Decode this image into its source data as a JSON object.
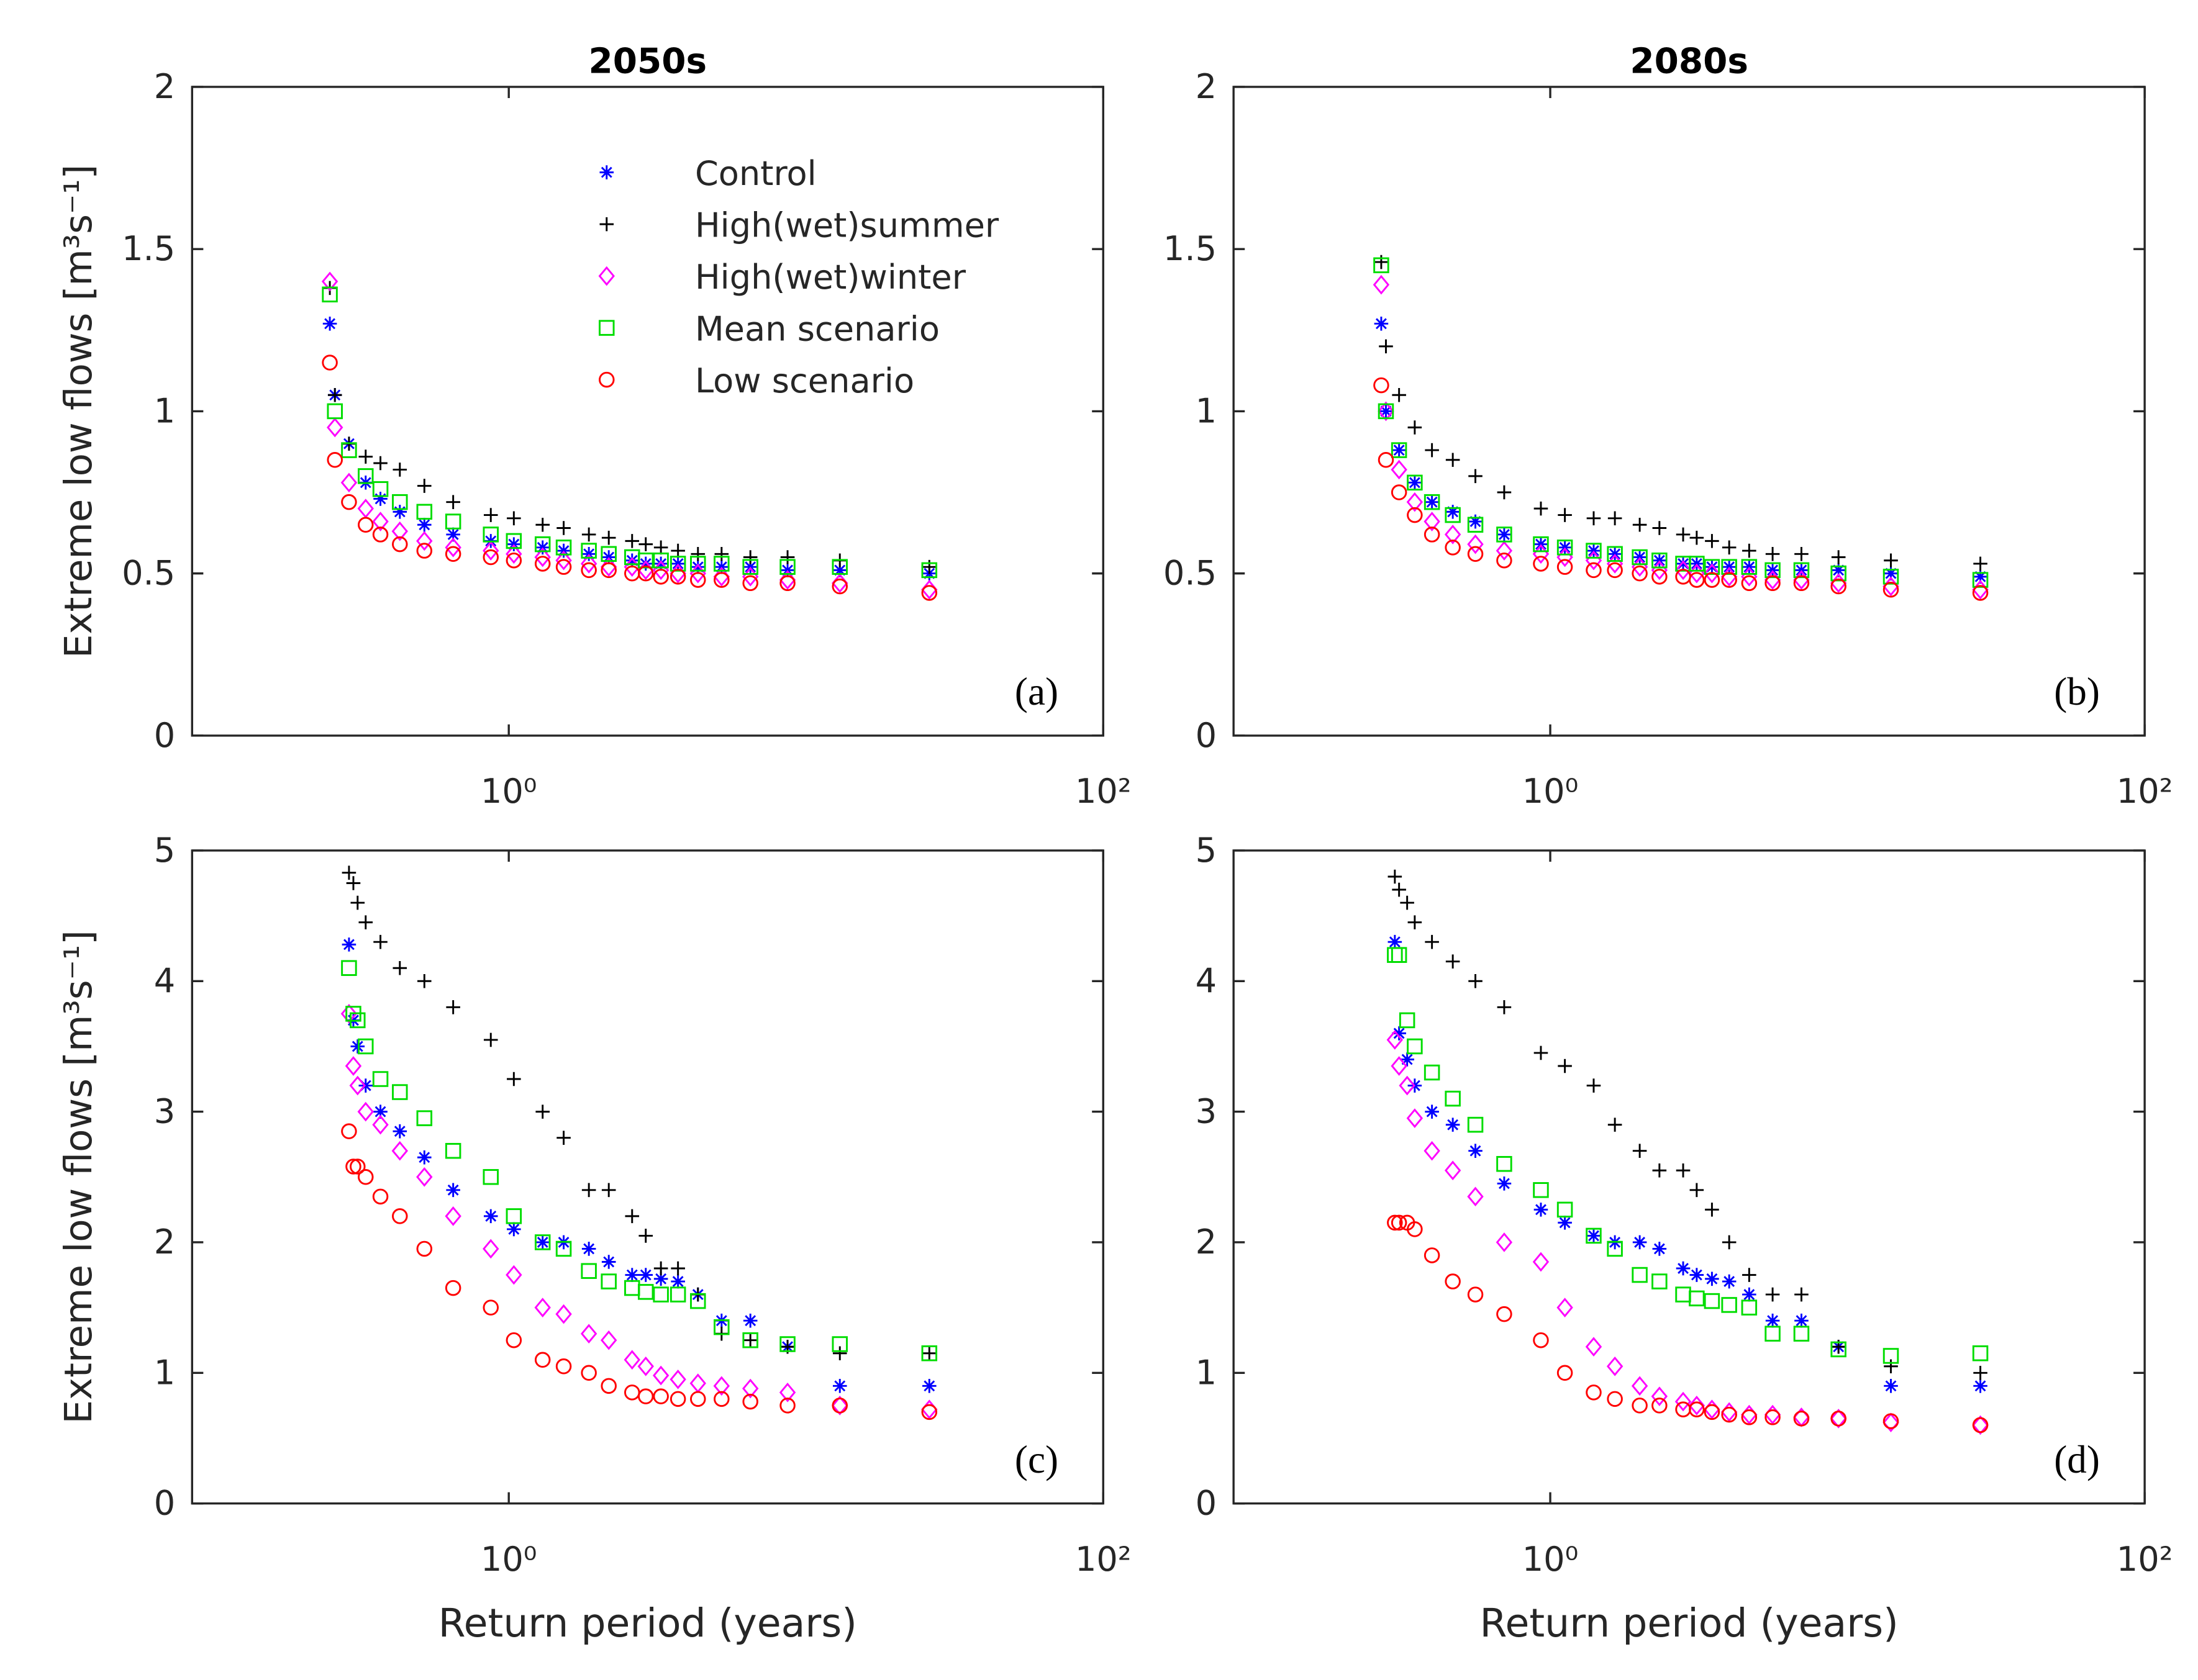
{
  "chart_data": [
    {
      "type": "scatter",
      "title": "2050s",
      "ylabel": "Extreme low flows [m³s⁻¹]",
      "annotation": "(a)",
      "legend": "upper center",
      "xscale": "log",
      "xlim": [
        0.086,
        100
      ],
      "xticks": [
        {
          "value": 1,
          "label": "10⁰"
        },
        {
          "value": 100,
          "label": "10²"
        }
      ],
      "ylim": [
        0,
        2
      ],
      "yticks": [
        0,
        0.5,
        1,
        1.5,
        2
      ],
      "x": [
        26,
        13,
        8.67,
        6.5,
        5.2,
        4.33,
        3.71,
        3.25,
        2.89,
        2.6,
        2.17,
        1.86,
        1.53,
        1.3,
        1.04,
        0.87,
        0.65,
        0.52,
        0.43,
        0.37,
        0.33,
        0.29,
        0.26,
        0.25
      ],
      "series": [
        {
          "name": "Control",
          "marker": "star",
          "color": "#0000ff",
          "values": [
            0.5,
            0.51,
            0.51,
            0.52,
            0.52,
            0.52,
            0.53,
            0.53,
            0.53,
            0.54,
            0.55,
            0.56,
            0.57,
            0.58,
            0.59,
            0.6,
            0.62,
            0.65,
            0.69,
            0.73,
            0.78,
            0.9,
            1.05,
            1.27
          ]
        },
        {
          "name": "High(wet)summer",
          "marker": "plus",
          "color": "#000000",
          "values": [
            0.52,
            0.54,
            0.55,
            0.55,
            0.56,
            0.56,
            0.57,
            0.58,
            0.59,
            0.6,
            0.61,
            0.62,
            0.64,
            0.65,
            0.67,
            0.68,
            0.72,
            0.77,
            0.82,
            0.84,
            0.86,
            0.9,
            1.05,
            1.38
          ]
        },
        {
          "name": "High(wet)winter",
          "marker": "diamond",
          "color": "#ff00ff",
          "values": [
            0.45,
            0.47,
            0.48,
            0.49,
            0.49,
            0.5,
            0.5,
            0.51,
            0.51,
            0.52,
            0.52,
            0.53,
            0.54,
            0.55,
            0.56,
            0.57,
            0.58,
            0.6,
            0.63,
            0.66,
            0.7,
            0.78,
            0.95,
            1.4
          ]
        },
        {
          "name": "Mean scenario",
          "marker": "square",
          "color": "#00dd00",
          "values": [
            0.51,
            0.52,
            0.52,
            0.52,
            0.53,
            0.53,
            0.53,
            0.54,
            0.54,
            0.55,
            0.56,
            0.57,
            0.58,
            0.59,
            0.6,
            0.62,
            0.66,
            0.69,
            0.72,
            0.76,
            0.8,
            0.88,
            1.0,
            1.36
          ]
        },
        {
          "name": "Low scenario",
          "marker": "circle",
          "color": "#ff0000",
          "values": [
            0.44,
            0.46,
            0.47,
            0.47,
            0.48,
            0.48,
            0.49,
            0.49,
            0.5,
            0.5,
            0.51,
            0.51,
            0.52,
            0.53,
            0.54,
            0.55,
            0.56,
            0.57,
            0.59,
            0.62,
            0.65,
            0.72,
            0.85,
            1.15
          ]
        }
      ]
    },
    {
      "type": "scatter",
      "title": "2080s",
      "annotation": "(b)",
      "xscale": "log",
      "xlim": [
        0.086,
        100
      ],
      "xticks": [
        {
          "value": 1,
          "label": "10⁰"
        },
        {
          "value": 100,
          "label": "10²"
        }
      ],
      "ylim": [
        0,
        2
      ],
      "yticks": [
        0,
        0.5,
        1,
        1.5,
        2
      ],
      "x": [
        28,
        14,
        9.33,
        7,
        5.6,
        4.67,
        4,
        3.5,
        3.11,
        2.8,
        2.33,
        2,
        1.65,
        1.4,
        1.12,
        0.93,
        0.7,
        0.56,
        0.47,
        0.4,
        0.35,
        0.31,
        0.28,
        0.27
      ],
      "series": [
        {
          "marker": "star",
          "color": "#0000ff",
          "values": [
            0.49,
            0.5,
            0.51,
            0.51,
            0.51,
            0.52,
            0.52,
            0.52,
            0.53,
            0.53,
            0.54,
            0.55,
            0.56,
            0.57,
            0.58,
            0.59,
            0.62,
            0.66,
            0.69,
            0.72,
            0.78,
            0.88,
            1.0,
            1.27
          ]
        },
        {
          "marker": "plus",
          "color": "#000000",
          "values": [
            0.53,
            0.54,
            0.55,
            0.56,
            0.56,
            0.57,
            0.58,
            0.6,
            0.61,
            0.62,
            0.64,
            0.65,
            0.67,
            0.67,
            0.68,
            0.7,
            0.75,
            0.8,
            0.85,
            0.88,
            0.95,
            1.05,
            1.2,
            1.46
          ]
        },
        {
          "marker": "diamond",
          "color": "#ff00ff",
          "values": [
            0.45,
            0.46,
            0.47,
            0.48,
            0.48,
            0.49,
            0.49,
            0.5,
            0.5,
            0.51,
            0.51,
            0.52,
            0.53,
            0.54,
            0.55,
            0.56,
            0.57,
            0.59,
            0.62,
            0.66,
            0.72,
            0.82,
            1.0,
            1.39
          ]
        },
        {
          "marker": "square",
          "color": "#00dd00",
          "values": [
            0.48,
            0.49,
            0.5,
            0.51,
            0.51,
            0.52,
            0.52,
            0.52,
            0.53,
            0.53,
            0.54,
            0.55,
            0.56,
            0.57,
            0.58,
            0.59,
            0.62,
            0.65,
            0.68,
            0.72,
            0.78,
            0.88,
            1.0,
            1.45
          ]
        },
        {
          "marker": "circle",
          "color": "#ff0000",
          "values": [
            0.44,
            0.45,
            0.46,
            0.47,
            0.47,
            0.47,
            0.48,
            0.48,
            0.48,
            0.49,
            0.49,
            0.5,
            0.51,
            0.51,
            0.52,
            0.53,
            0.54,
            0.56,
            0.58,
            0.62,
            0.68,
            0.75,
            0.85,
            1.08
          ]
        }
      ]
    },
    {
      "type": "scatter",
      "ylabel": "Extreme low flows [m³s⁻¹]",
      "xlabel": "Return period (years)",
      "annotation": "(c)",
      "xscale": "log",
      "xlim": [
        0.086,
        100
      ],
      "xticks": [
        {
          "value": 1,
          "label": "10⁰"
        },
        {
          "value": 100,
          "label": "10²"
        }
      ],
      "ylim": [
        0,
        5
      ],
      "yticks": [
        0,
        1,
        2,
        3,
        4,
        5
      ],
      "x": [
        26,
        13,
        8.67,
        6.5,
        5.2,
        4.33,
        3.71,
        3.25,
        2.89,
        2.6,
        2.17,
        1.86,
        1.53,
        1.3,
        1.04,
        0.87,
        0.65,
        0.52,
        0.43,
        0.37,
        0.33,
        0.31,
        0.3,
        0.29
      ],
      "series": [
        {
          "marker": "star",
          "color": "#0000ff",
          "values": [
            0.9,
            0.9,
            1.2,
            1.4,
            1.4,
            1.6,
            1.7,
            1.72,
            1.75,
            1.75,
            1.85,
            1.95,
            2.0,
            2.0,
            2.1,
            2.2,
            2.4,
            2.65,
            2.85,
            3.0,
            3.2,
            3.5,
            3.7,
            4.28
          ]
        },
        {
          "marker": "plus",
          "color": "#000000",
          "values": [
            1.15,
            1.15,
            1.2,
            1.25,
            1.3,
            1.6,
            1.8,
            1.8,
            2.05,
            2.2,
            2.4,
            2.4,
            2.8,
            3.0,
            3.25,
            3.55,
            3.8,
            4.0,
            4.1,
            4.3,
            4.45,
            4.6,
            4.75,
            4.83
          ]
        },
        {
          "marker": "diamond",
          "color": "#ff00ff",
          "values": [
            0.72,
            0.75,
            0.85,
            0.88,
            0.9,
            0.92,
            0.95,
            0.98,
            1.05,
            1.1,
            1.25,
            1.3,
            1.45,
            1.5,
            1.75,
            1.95,
            2.2,
            2.5,
            2.7,
            2.9,
            3.0,
            3.2,
            3.35,
            3.75
          ]
        },
        {
          "marker": "square",
          "color": "#00dd00",
          "values": [
            1.15,
            1.22,
            1.22,
            1.25,
            1.35,
            1.55,
            1.6,
            1.6,
            1.62,
            1.65,
            1.7,
            1.78,
            1.95,
            2.0,
            2.2,
            2.5,
            2.7,
            2.95,
            3.15,
            3.25,
            3.5,
            3.7,
            3.75,
            4.1
          ]
        },
        {
          "marker": "circle",
          "color": "#ff0000",
          "values": [
            0.7,
            0.75,
            0.75,
            0.78,
            0.8,
            0.8,
            0.8,
            0.82,
            0.82,
            0.85,
            0.9,
            1.0,
            1.05,
            1.1,
            1.25,
            1.5,
            1.65,
            1.95,
            2.2,
            2.35,
            2.5,
            2.58,
            2.58,
            2.85
          ]
        }
      ]
    },
    {
      "type": "scatter",
      "xlabel": "Return period (years)",
      "annotation": "(d)",
      "xscale": "log",
      "xlim": [
        0.086,
        100
      ],
      "xticks": [
        {
          "value": 1,
          "label": "10⁰"
        },
        {
          "value": 100,
          "label": "10²"
        }
      ],
      "ylim": [
        0,
        5
      ],
      "yticks": [
        0,
        1,
        2,
        3,
        4,
        5
      ],
      "x": [
        28,
        14,
        9.33,
        7,
        5.6,
        4.67,
        4,
        3.5,
        3.11,
        2.8,
        2.33,
        2,
        1.65,
        1.4,
        1.12,
        0.93,
        0.7,
        0.56,
        0.47,
        0.4,
        0.35,
        0.33,
        0.31,
        0.3
      ],
      "series": [
        {
          "marker": "star",
          "color": "#0000ff",
          "values": [
            0.9,
            0.9,
            1.2,
            1.4,
            1.4,
            1.6,
            1.7,
            1.72,
            1.75,
            1.8,
            1.95,
            2.0,
            2.0,
            2.05,
            2.15,
            2.25,
            2.45,
            2.7,
            2.9,
            3.0,
            3.2,
            3.4,
            3.6,
            4.3
          ]
        },
        {
          "marker": "plus",
          "color": "#000000",
          "values": [
            1.0,
            1.05,
            1.2,
            1.6,
            1.6,
            1.75,
            2.0,
            2.25,
            2.4,
            2.55,
            2.55,
            2.7,
            2.9,
            3.2,
            3.35,
            3.45,
            3.8,
            4.0,
            4.15,
            4.3,
            4.45,
            4.6,
            4.7,
            4.8
          ]
        },
        {
          "marker": "diamond",
          "color": "#ff00ff",
          "values": [
            0.6,
            0.62,
            0.65,
            0.66,
            0.68,
            0.68,
            0.7,
            0.72,
            0.75,
            0.78,
            0.82,
            0.9,
            1.05,
            1.2,
            1.5,
            1.85,
            2.0,
            2.35,
            2.55,
            2.7,
            2.95,
            3.2,
            3.35,
            3.55
          ]
        },
        {
          "marker": "square",
          "color": "#00dd00",
          "values": [
            1.15,
            1.13,
            1.18,
            1.3,
            1.3,
            1.5,
            1.52,
            1.55,
            1.57,
            1.6,
            1.7,
            1.75,
            1.95,
            2.05,
            2.25,
            2.4,
            2.6,
            2.9,
            3.1,
            3.3,
            3.5,
            3.7,
            4.2,
            4.2
          ]
        },
        {
          "marker": "circle",
          "color": "#ff0000",
          "values": [
            0.6,
            0.63,
            0.65,
            0.65,
            0.66,
            0.66,
            0.68,
            0.7,
            0.72,
            0.72,
            0.75,
            0.75,
            0.8,
            0.85,
            1.0,
            1.25,
            1.45,
            1.6,
            1.7,
            1.9,
            2.1,
            2.15,
            2.15,
            2.15
          ]
        }
      ]
    }
  ]
}
